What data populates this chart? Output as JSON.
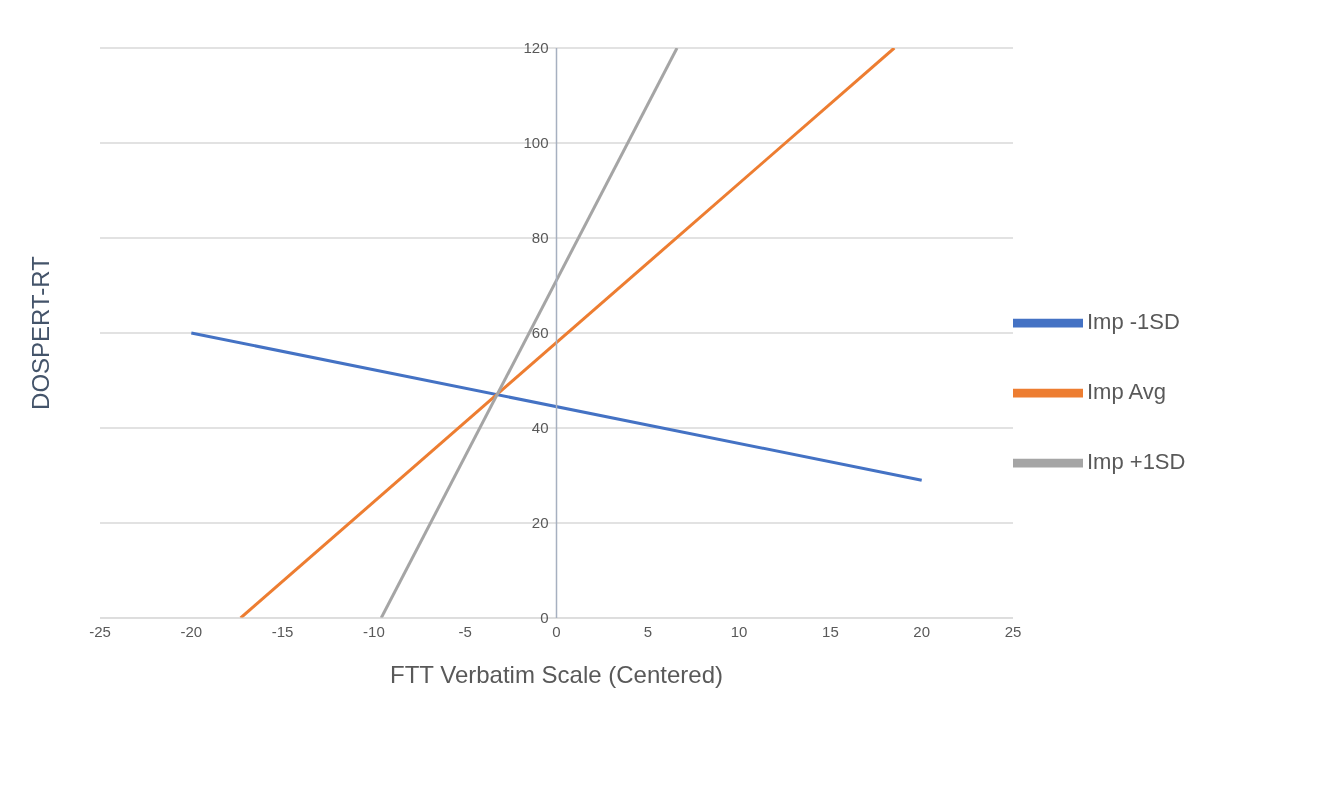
{
  "chart_data": {
    "type": "line",
    "xlabel": "FTT Verbatim Scale (Centered)",
    "ylabel": "DOSPERT-RT",
    "series": [
      {
        "name": "Imp -1SD",
        "color": "#4472c4",
        "x": [
          -20,
          20
        ],
        "values": [
          60,
          29
        ]
      },
      {
        "name": "Imp Avg",
        "color": "#ed7d31",
        "x": [
          -17.3,
          18.5
        ],
        "values": [
          0,
          120
        ]
      },
      {
        "name": "Imp +1SD",
        "color": "#a5a5a5",
        "x": [
          -9.6,
          6.6
        ],
        "values": [
          0,
          120
        ]
      }
    ],
    "xlim": [
      -25,
      25
    ],
    "xticks": [
      -25,
      -20,
      -15,
      -10,
      -5,
      0,
      5,
      10,
      15,
      20,
      25
    ],
    "ylim": [
      0,
      120
    ],
    "yticks": [
      0,
      20,
      40,
      60,
      80,
      100,
      120
    ],
    "grid": "y",
    "legend": "right",
    "marker": "none",
    "line_style": "solid"
  }
}
